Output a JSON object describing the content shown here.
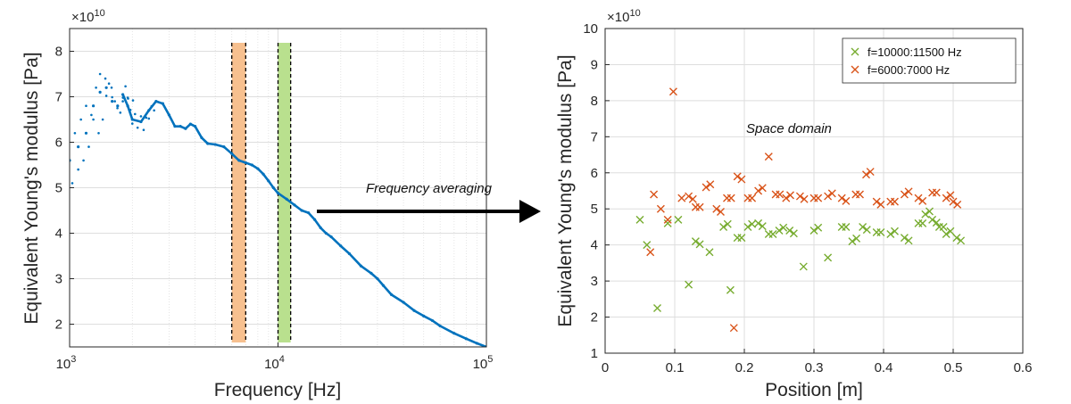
{
  "colors": {
    "blue": "#0072BD",
    "green": "#77AC30",
    "red": "#D95319",
    "orange_band": "#F7C08F",
    "green_band": "#B9E08E",
    "grid": "#DEDEDE",
    "axis": "#262626"
  },
  "chart_data": [
    {
      "type": "scatter-line",
      "title": "",
      "xlabel": "Frequency [Hz]",
      "ylabel": "Equivalent Young's modulus [Pa]",
      "xscale": "log",
      "xlim": [
        1000,
        100000
      ],
      "ylim": [
        1.5,
        8.5
      ],
      "x_ticks": [
        1000,
        10000,
        100000
      ],
      "x_tick_labels": [
        {
          "base": "10",
          "exp": "3"
        },
        {
          "base": "10",
          "exp": "4"
        },
        {
          "base": "10",
          "exp": "5"
        }
      ],
      "y_ticks": [
        2,
        3,
        4,
        5,
        6,
        7,
        8
      ],
      "y_tick_labels": [
        "2",
        "3",
        "4",
        "5",
        "6",
        "7",
        "8"
      ],
      "y_multiplier": {
        "base": "×10",
        "exp": "10"
      },
      "grid": true,
      "series": [
        {
          "name": "equivalent modulus",
          "color": "#0072BD",
          "x": [
            1000,
            1100,
            1200,
            1300,
            1400,
            1500,
            1600,
            1700,
            1800,
            1900,
            2000,
            2200,
            2400,
            2600,
            2800,
            3000,
            3200,
            3400,
            3600,
            3800,
            4000,
            4300,
            4600,
            5000,
            5500,
            6000,
            6500,
            7000,
            7500,
            8000,
            8500,
            9000,
            9500,
            10000,
            11000,
            12000,
            13000,
            14000,
            15000,
            16000,
            17000,
            18000,
            20000,
            22000,
            25000,
            28000,
            30000,
            32000,
            35000,
            40000,
            45000,
            50000,
            55000,
            60000,
            70000,
            80000,
            90000,
            100000
          ],
          "values": [
            5.6,
            5.9,
            6.2,
            6.8,
            7.1,
            7.2,
            6.9,
            6.8,
            7.05,
            6.8,
            6.5,
            6.45,
            6.7,
            6.9,
            6.85,
            6.6,
            6.35,
            6.35,
            6.3,
            6.4,
            6.35,
            6.1,
            5.97,
            5.95,
            5.9,
            5.75,
            5.6,
            5.55,
            5.5,
            5.42,
            5.3,
            5.15,
            5.0,
            4.88,
            4.75,
            4.62,
            4.5,
            4.45,
            4.3,
            4.12,
            4.0,
            3.92,
            3.72,
            3.55,
            3.28,
            3.12,
            3.0,
            2.85,
            2.65,
            2.48,
            2.3,
            2.18,
            2.08,
            1.96,
            1.8,
            1.68,
            1.58,
            1.5
          ]
        }
      ],
      "bands": [
        {
          "name": "orange band",
          "from": 6000,
          "to": 7000,
          "color": "#F7C08F"
        },
        {
          "name": "green band",
          "from": 10000,
          "to": 11500,
          "color": "#B9E08E"
        }
      ],
      "annotation": "Frequency averaging"
    },
    {
      "type": "scatter",
      "title": "",
      "xlabel": "Position [m]",
      "ylabel": "Equivalent Young's modulus [Pa]",
      "xlim": [
        0,
        0.6
      ],
      "ylim": [
        1,
        10
      ],
      "x_ticks": [
        0,
        0.1,
        0.2,
        0.3,
        0.4,
        0.5,
        0.6
      ],
      "x_tick_labels": [
        "0",
        "0.1",
        "0.2",
        "0.3",
        "0.4",
        "0.5",
        "0.6"
      ],
      "y_ticks": [
        1,
        2,
        3,
        4,
        5,
        6,
        7,
        8,
        9,
        10
      ],
      "y_tick_labels": [
        "1",
        "2",
        "3",
        "4",
        "5",
        "6",
        "7",
        "8",
        "9",
        "10"
      ],
      "y_multiplier": {
        "base": "×10",
        "exp": "10"
      },
      "grid": true,
      "legend_position": "top-right",
      "annotation": "Space domain",
      "series": [
        {
          "name": "f=10000:11500 Hz",
          "color": "#77AC30",
          "marker": "x",
          "x": [
            0.05,
            0.06,
            0.075,
            0.09,
            0.105,
            0.12,
            0.13,
            0.15,
            0.17,
            0.18,
            0.19,
            0.205,
            0.22,
            0.235,
            0.25,
            0.265,
            0.285,
            0.3,
            0.32,
            0.34,
            0.355,
            0.37,
            0.39,
            0.41,
            0.43,
            0.45,
            0.46,
            0.47,
            0.48,
            0.49,
            0.505
          ],
          "values": [
            4.7,
            4.0,
            2.25,
            4.6,
            4.7,
            2.9,
            4.1,
            3.8,
            4.5,
            2.75,
            4.2,
            4.5,
            4.6,
            4.3,
            4.4,
            4.4,
            3.4,
            4.4,
            3.65,
            4.5,
            4.1,
            4.5,
            4.35,
            4.3,
            4.2,
            4.6,
            4.85,
            4.7,
            4.5,
            4.3,
            4.2
          ]
        },
        {
          "name": "f=6000:7000 Hz",
          "color": "#D95319",
          "marker": "x",
          "x": [
            0.065,
            0.07,
            0.08,
            0.09,
            0.098,
            0.11,
            0.12,
            0.13,
            0.145,
            0.16,
            0.175,
            0.185,
            0.19,
            0.205,
            0.22,
            0.235,
            0.245,
            0.26,
            0.28,
            0.3,
            0.32,
            0.34,
            0.36,
            0.375,
            0.39,
            0.41,
            0.43,
            0.45,
            0.47,
            0.49,
            0.5
          ],
          "values": [
            3.8,
            5.4,
            5.0,
            4.7,
            8.25,
            5.3,
            5.35,
            5.05,
            5.6,
            5.0,
            5.3,
            1.7,
            5.9,
            5.3,
            5.5,
            6.45,
            5.4,
            5.3,
            5.35,
            5.3,
            5.35,
            5.3,
            5.4,
            5.95,
            5.2,
            5.2,
            5.4,
            5.3,
            5.45,
            5.3,
            5.2
          ]
        }
      ]
    }
  ]
}
